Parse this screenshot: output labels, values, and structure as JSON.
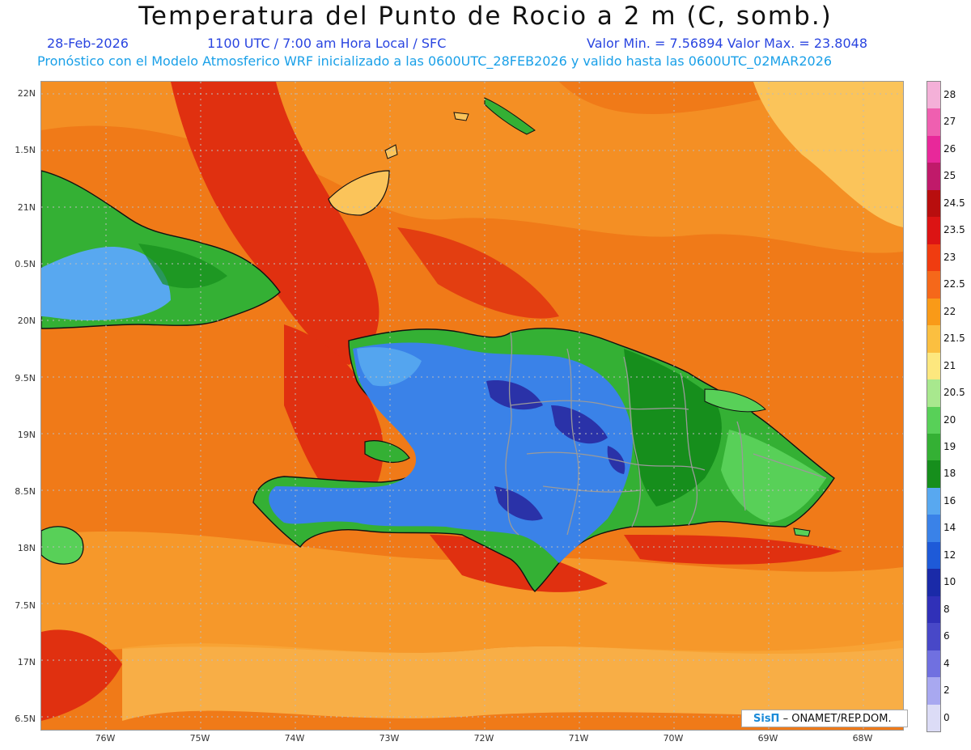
{
  "header": {
    "title": "Temperatura del Punto de Rocio a 2 m (C, somb.)",
    "date": "28-Feb-2026",
    "time": "1100 UTC / 7:00 am Hora Local / SFC",
    "min_max": "Valor Min. = 7.56894   Valor Max. = 23.8048",
    "forecast_info": "Pronóstico con el Modelo Atmosferico WRF inicializado a las 0600UTC_28FEB2026 y valido hasta las  0600UTC_02MAR2026"
  },
  "axes": {
    "lat_labels": [
      "22N",
      "1.5N",
      "21N",
      "0.5N",
      "20N",
      "9.5N",
      "19N",
      "8.5N",
      "18N",
      "7.5N",
      "17N",
      "6.5N"
    ],
    "lon_labels": [
      "76W",
      "75W",
      "74W",
      "73W",
      "72W",
      "71W",
      "70W",
      "69W",
      "68W"
    ]
  },
  "colorbar": {
    "labels": [
      "28",
      "27",
      "26",
      "25",
      "24.5",
      "23.5",
      "23",
      "22.5",
      "22",
      "21.5",
      "21",
      "20.5",
      "20",
      "19",
      "18",
      "16",
      "14",
      "12",
      "10",
      "8",
      "6",
      "4",
      "2",
      "0"
    ],
    "colors": [
      "#f4b0d8",
      "#ef5fb0",
      "#e8289a",
      "#c01a6a",
      "#b80e0e",
      "#dc1414",
      "#f03c10",
      "#f5681a",
      "#f99a18",
      "#fbbf40",
      "#fde77e",
      "#a8e88e",
      "#58d058",
      "#34b034",
      "#168e1c",
      "#58a8f0",
      "#3a82e8",
      "#1e5ad8",
      "#1a2aa8",
      "#3030b8",
      "#4848c8",
      "#7070e0",
      "#a8a8f0",
      "#dcdcf6"
    ]
  },
  "credit": {
    "logo": "SisΠ",
    "text": "– ONAMET/REP.DOM."
  },
  "palette": {
    "ocean_base": "#f07a18",
    "ocean_red": "#e03010",
    "ocean_light": "#f8a030",
    "ocean_pale": "#fbc45a",
    "land_green": "#34b034",
    "land_dark_green": "#168e1c",
    "land_light_green": "#58d058",
    "land_blue": "#3a82e8",
    "land_light_blue": "#58a8f0",
    "land_dark_blue": "#2a32a8",
    "border_gray": "#9a9a9a",
    "coast": "#111111"
  }
}
